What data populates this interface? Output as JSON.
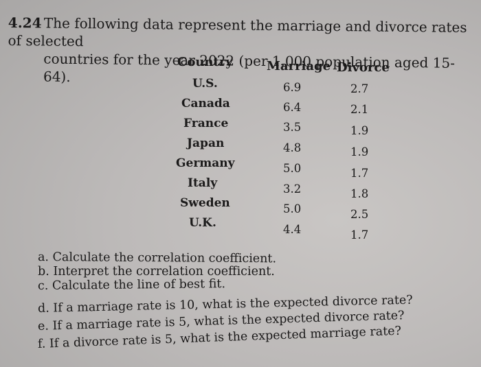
{
  "problem": {
    "number": "4.24",
    "line1": "The following data represent the marriage and divorce rates of selected",
    "line2": "countries for the year 2022 (per 1,000 population aged 15-64)."
  },
  "table": {
    "headers": [
      "Country",
      "Marriage",
      "Divorce"
    ],
    "rows": [
      {
        "country": "U.S.",
        "marriage": "6.9",
        "divorce": "2.7"
      },
      {
        "country": "Canada",
        "marriage": "6.4",
        "divorce": "2.1"
      },
      {
        "country": "France",
        "marriage": "3.5",
        "divorce": "1.9"
      },
      {
        "country": "Japan",
        "marriage": "4.8",
        "divorce": "1.9"
      },
      {
        "country": "Germany",
        "marriage": "5.0",
        "divorce": "1.7"
      },
      {
        "country": "Italy",
        "marriage": "3.2",
        "divorce": "1.8"
      },
      {
        "country": "Sweden",
        "marriage": "5.0",
        "divorce": "2.5"
      },
      {
        "country": "U.K.",
        "marriage": "4.4",
        "divorce": "1.7"
      }
    ]
  },
  "questions": [
    "a. Calculate the correlation coefficient.",
    "b. Interpret the correlation coefficient.",
    "c. Calculate the line of best fit.",
    "d. If a marriage rate is 10, what is the expected divorce rate?",
    "e. If a marriage rate is 5, what is the expected divorce rate?",
    "f. If a divorce rate is 5, what is the expected marriage rate?"
  ]
}
